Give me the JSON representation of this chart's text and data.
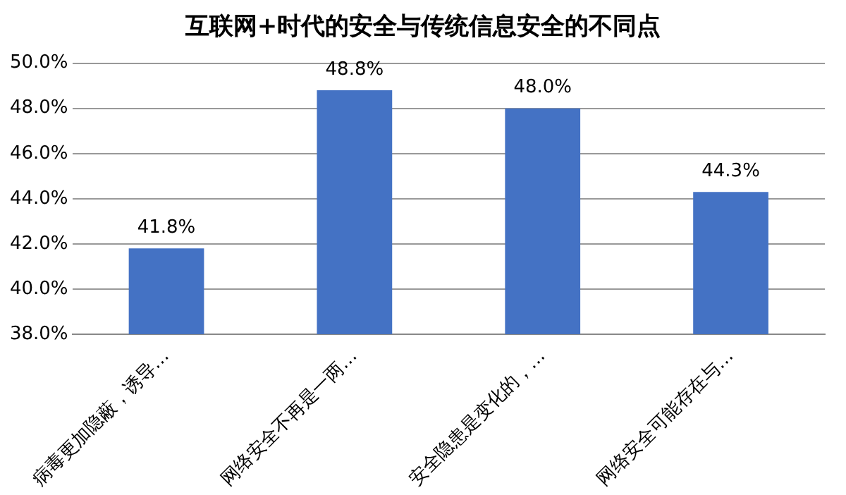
{
  "chart_data": {
    "type": "bar",
    "title": "互联网+时代的安全与传统信息安全的不同点",
    "categories": [
      "病毒更加隐蔽，诱导…",
      "网络安全不再是一两…",
      "安全隐患是变化的，…",
      "网络安全可能存在与…"
    ],
    "values": [
      41.8,
      48.8,
      48.0,
      44.3
    ],
    "value_labels": [
      "41.8%",
      "48.8%",
      "48.0%",
      "44.3%"
    ],
    "color": "#4472c4",
    "ylim": [
      38,
      50
    ],
    "yticks": [
      {
        "value": 38,
        "label": "38.0%"
      },
      {
        "value": 40,
        "label": "40.0%"
      },
      {
        "value": 42,
        "label": "42.0%"
      },
      {
        "value": 44,
        "label": "44.0%"
      },
      {
        "value": 46,
        "label": "46.0%"
      },
      {
        "value": 48,
        "label": "48.0%"
      },
      {
        "value": 50,
        "label": "50.0%"
      }
    ],
    "grid": "y",
    "legend": false
  }
}
